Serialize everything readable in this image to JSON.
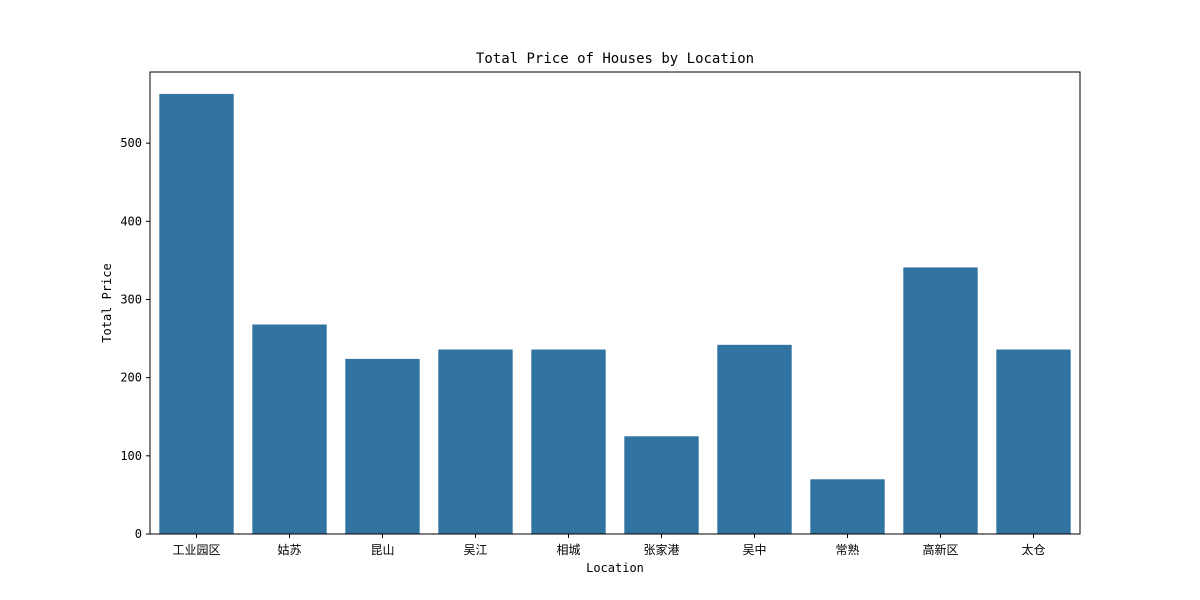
{
  "chart_data": {
    "type": "bar",
    "title": "Total Price of Houses by Location",
    "xlabel": "Location",
    "ylabel": "Total Price",
    "categories": [
      "工业园区",
      "姑苏",
      "昆山",
      "吴江",
      "相城",
      "张家港",
      "吴中",
      "常熟",
      "高新区",
      "太仓"
    ],
    "values": [
      563,
      268,
      224,
      236,
      236,
      125,
      242,
      70,
      341,
      236
    ],
    "ylim": [
      0,
      591
    ],
    "yticks": [
      0,
      100,
      200,
      300,
      400,
      500
    ],
    "grid": false,
    "legend": "none",
    "bar_color": "#3274a1"
  }
}
